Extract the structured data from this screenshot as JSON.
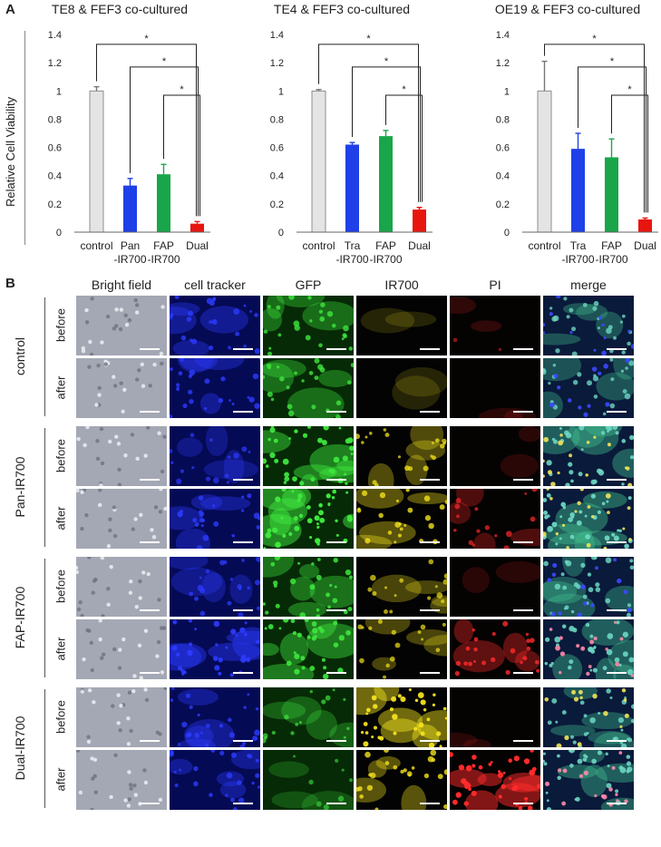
{
  "panel_a_label": "A",
  "panel_b_label": "B",
  "y_axis_title": "Relative Cell Viability",
  "chart_data": [
    {
      "type": "bar",
      "title": "TE8 & FEF3 co-cultured",
      "categories": [
        "control",
        "Pan\n-IR700",
        "FAP\n-IR700",
        "Dual"
      ],
      "category_lines": [
        [
          "control"
        ],
        [
          "Pan",
          "-IR700"
        ],
        [
          "FAP",
          "-IR700"
        ],
        [
          "Dual"
        ]
      ],
      "values": [
        1.0,
        0.33,
        0.41,
        0.06
      ],
      "errors": [
        0.03,
        0.05,
        0.07,
        0.015
      ],
      "colors": [
        "#e4e4e4",
        "#1f3fe8",
        "#19a64a",
        "#e8150f"
      ],
      "ylim": [
        0,
        1.4
      ],
      "yticks": [
        "0",
        "0.2",
        "0.4",
        "0.6",
        "0.8",
        "1",
        "1.2",
        "1.4"
      ],
      "significance": [
        {
          "from": 0,
          "to": 3,
          "label": "*"
        },
        {
          "from": 1,
          "to": 3,
          "label": "*"
        },
        {
          "from": 2,
          "to": 3,
          "label": "*"
        }
      ]
    },
    {
      "type": "bar",
      "title": "TE4 & FEF3 co-cultured",
      "categories": [
        "control",
        "Tra\n-IR700",
        "FAP\n-IR700",
        "Dual"
      ],
      "category_lines": [
        [
          "control"
        ],
        [
          "Tra",
          "-IR700"
        ],
        [
          "FAP",
          "-IR700"
        ],
        [
          "Dual"
        ]
      ],
      "values": [
        1.0,
        0.62,
        0.68,
        0.16
      ],
      "errors": [
        0.01,
        0.015,
        0.04,
        0.015
      ],
      "colors": [
        "#e4e4e4",
        "#1f3fe8",
        "#19a64a",
        "#e8150f"
      ],
      "ylim": [
        0,
        1.4
      ],
      "yticks": [
        "0",
        "0.2",
        "0.4",
        "0.6",
        "0.8",
        "1",
        "1.2",
        "1.4"
      ],
      "significance": [
        {
          "from": 0,
          "to": 3,
          "label": "*"
        },
        {
          "from": 1,
          "to": 3,
          "label": "*"
        },
        {
          "from": 2,
          "to": 3,
          "label": "*"
        }
      ]
    },
    {
      "type": "bar",
      "title": "OE19 & FEF3 co-cultured",
      "categories": [
        "control",
        "Tra\n-IR700",
        "FAP\n-IR700",
        "Dual"
      ],
      "category_lines": [
        [
          "control"
        ],
        [
          "Tra",
          "-IR700"
        ],
        [
          "FAP",
          "-IR700"
        ],
        [
          "Dual"
        ]
      ],
      "values": [
        1.0,
        0.59,
        0.53,
        0.09
      ],
      "errors": [
        0.21,
        0.11,
        0.13,
        0.01
      ],
      "colors": [
        "#e4e4e4",
        "#1f3fe8",
        "#19a64a",
        "#e8150f"
      ],
      "ylim": [
        0,
        1.4
      ],
      "yticks": [
        "0",
        "0.2",
        "0.4",
        "0.6",
        "0.8",
        "1",
        "1.2",
        "1.4"
      ],
      "significance": [
        {
          "from": 0,
          "to": 3,
          "label": "*"
        },
        {
          "from": 1,
          "to": 3,
          "label": "*"
        },
        {
          "from": 2,
          "to": 3,
          "label": "*"
        }
      ]
    }
  ],
  "microscopy": {
    "columns": [
      {
        "label": "Bright field",
        "base": "#a9adb8",
        "dot": "#e8ebf2",
        "intensity": 0.0
      },
      {
        "label": "cell tracker",
        "base": "#050a55",
        "dot": "#2c3bff",
        "intensity": 0.6
      },
      {
        "label": "GFP",
        "base": "#062a06",
        "dot": "#3ee63e",
        "intensity": 0.7
      },
      {
        "label": "IR700",
        "base": "#030303",
        "dot": "#f3e21c",
        "intensity": 0.5
      },
      {
        "label": "PI",
        "base": "#050202",
        "dot": "#ff2a2a",
        "intensity": 0.5
      },
      {
        "label": "merge",
        "base": "#0a1a3a",
        "dot": "#6bd6c2",
        "intensity": 0.7
      }
    ],
    "groups": [
      {
        "label": "control",
        "rows": [
          {
            "label": "before",
            "levels": [
              1,
              0.6,
              0.6,
              0.0,
              0.05,
              0.6
            ]
          },
          {
            "label": "after",
            "levels": [
              1,
              0.6,
              0.6,
              0.0,
              0.0,
              0.6
            ]
          }
        ]
      },
      {
        "label": "Pan-IR700",
        "rows": [
          {
            "label": "before",
            "levels": [
              1,
              0.4,
              0.9,
              0.5,
              0.0,
              0.8
            ]
          },
          {
            "label": "after",
            "levels": [
              1,
              0.6,
              1.0,
              0.6,
              0.4,
              0.9
            ]
          }
        ]
      },
      {
        "label": "FAP-IR700",
        "rows": [
          {
            "label": "before",
            "levels": [
              1,
              0.5,
              0.7,
              0.4,
              0.0,
              0.7
            ]
          },
          {
            "label": "after",
            "levels": [
              1,
              0.8,
              0.8,
              0.4,
              0.6,
              0.8
            ]
          }
        ]
      },
      {
        "label": "Dual-IR700",
        "rows": [
          {
            "label": "before",
            "levels": [
              1,
              0.6,
              0.4,
              0.9,
              0.0,
              0.7
            ]
          },
          {
            "label": "after",
            "levels": [
              1,
              0.6,
              0.2,
              0.6,
              1.0,
              0.8
            ]
          }
        ]
      }
    ]
  }
}
